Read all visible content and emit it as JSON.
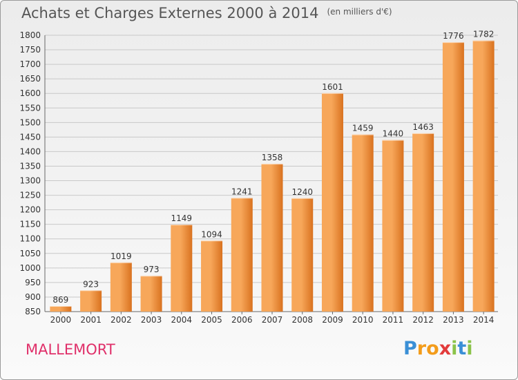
{
  "header": {
    "title": "Achats et Charges Externes 2000 à 2014",
    "unit": "(en milliers d'€)"
  },
  "location": "MALLEMORT",
  "logo": {
    "letters": [
      "P",
      "r",
      "o",
      "x",
      "i",
      "t",
      "i"
    ],
    "colors": [
      "#3a8fd6",
      "#f39c1b",
      "#f39c1b",
      "#e23b3b",
      "#8bc34a",
      "#3a8fd6",
      "#8bc34a"
    ]
  },
  "colors": {
    "bar_light": "#f7a75a",
    "bar_dark": "#d9721f",
    "grid": "#c8c8c8",
    "text": "#333333"
  },
  "chart_data": {
    "type": "bar",
    "categories": [
      "2000",
      "2001",
      "2002",
      "2003",
      "2004",
      "2005",
      "2006",
      "2007",
      "2008",
      "2009",
      "2010",
      "2011",
      "2012",
      "2013",
      "2014"
    ],
    "values": [
      869,
      923,
      1019,
      973,
      1149,
      1094,
      1241,
      1358,
      1240,
      1601,
      1459,
      1440,
      1463,
      1776,
      1782
    ],
    "title": "Achats et Charges Externes 2000 à 2014",
    "ylim": [
      850,
      1800
    ],
    "yticks": [
      850,
      900,
      950,
      1000,
      1050,
      1100,
      1150,
      1200,
      1250,
      1300,
      1350,
      1400,
      1450,
      1500,
      1550,
      1600,
      1650,
      1700,
      1750,
      1800
    ],
    "grid": true,
    "data_labels": true
  }
}
